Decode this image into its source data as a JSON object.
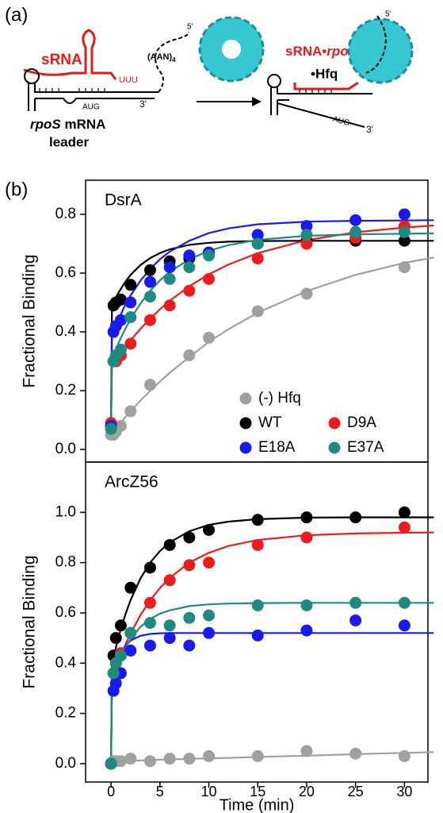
{
  "panel_labels": [
    "(a)",
    "(b)"
  ],
  "diagram": {
    "left": {
      "srna": "sRNA",
      "polyu": "UUU",
      "aan": "(AAN)",
      "aan_sub": "4",
      "five": "5'",
      "aug": "AUG",
      "three": "3'",
      "rpos": "rpoS",
      "mrna": "mRNA",
      "leader": "leader"
    },
    "right": {
      "srna": "sRNA•",
      "rpos": "rpoS",
      "hfq": "•Hfq",
      "five": "5'",
      "aug": "AUG",
      "three": "3'"
    }
  },
  "chart_data": [
    {
      "type": "scatter",
      "title": "DsrA",
      "ylabel": "Fractional Binding",
      "x": [
        0,
        0.25,
        0.5,
        1,
        2,
        4,
        6,
        8,
        10,
        15,
        20,
        25,
        30
      ],
      "fit_x": [
        0,
        0.1,
        0.3,
        0.6,
        1,
        1.5,
        2,
        3,
        4,
        5,
        6,
        8,
        10,
        12,
        15,
        20,
        25,
        30,
        33
      ],
      "xlim": [
        -2.6,
        32.4
      ],
      "ylim": [
        -0.043,
        0.916
      ],
      "yticks": [
        {
          "value": 0,
          "label": "0.0"
        },
        0.2,
        0.4,
        0.6,
        0.8
      ],
      "legend": "lower right",
      "series": [
        {
          "name": "(-) Hfq",
          "color": "#a0a0a0",
          "values": [
            0.05,
            0.05,
            0.06,
            0.08,
            0.13,
            0.22,
            null,
            0.32,
            0.38,
            0.47,
            0.53,
            null,
            0.62
          ],
          "fit": [
            0.05,
            0.054,
            0.063,
            0.075,
            0.091,
            0.111,
            0.129,
            0.166,
            0.199,
            0.231,
            0.261,
            0.314,
            0.366,
            0.409,
            0.465,
            0.539,
            0.594,
            0.635,
            0.653
          ]
        },
        {
          "name": "WT",
          "color": "#000000",
          "values": [
            0.08,
            0.49,
            0.5,
            0.51,
            0.56,
            0.61,
            0.64,
            0.65,
            0.67,
            0.7,
            0.71,
            0.71,
            0.71
          ],
          "fit": [
            0.08,
            0.488,
            0.503,
            0.524,
            0.546,
            0.572,
            0.594,
            0.627,
            0.651,
            0.668,
            0.681,
            0.696,
            0.703,
            0.707,
            0.709,
            0.71,
            0.71,
            0.71,
            0.71
          ]
        },
        {
          "name": "D9A",
          "color": "#ee1c1c",
          "values": [
            0.09,
            0.3,
            0.3,
            0.32,
            0.36,
            0.44,
            0.49,
            0.54,
            0.58,
            0.65,
            0.7,
            0.72,
            0.76
          ],
          "fit": [
            0.09,
            0.285,
            0.295,
            0.309,
            0.328,
            0.35,
            0.371,
            0.41,
            0.445,
            0.477,
            0.506,
            0.555,
            0.596,
            0.629,
            0.668,
            0.712,
            0.739,
            0.755,
            0.762
          ]
        },
        {
          "name": "E18A",
          "color": "#1a1aee",
          "values": [
            0.08,
            0.4,
            0.42,
            0.44,
            0.5,
            0.57,
            0.62,
            0.66,
            0.67,
            0.73,
            0.76,
            0.78,
            0.8
          ],
          "fit": [
            0.08,
            0.389,
            0.405,
            0.43,
            0.459,
            0.495,
            0.524,
            0.574,
            0.614,
            0.647,
            0.673,
            0.71,
            0.736,
            0.752,
            0.766,
            0.775,
            0.778,
            0.779,
            0.78
          ]
        },
        {
          "name": "E37A",
          "color": "#1f8a80",
          "values": [
            0.07,
            0.3,
            0.32,
            0.34,
            0.45,
            0.52,
            0.58,
            0.62,
            0.66,
            0.7,
            0.73,
            0.74,
            0.74
          ],
          "fit": [
            0.07,
            0.309,
            0.325,
            0.349,
            0.379,
            0.413,
            0.444,
            0.496,
            0.54,
            0.575,
            0.604,
            0.647,
            0.676,
            0.695,
            0.713,
            0.727,
            0.732,
            0.734,
            0.735
          ]
        }
      ]
    },
    {
      "type": "scatter",
      "title": "ArcZ56",
      "ylabel": "Fractional Binding",
      "xlabel": "Time (min)",
      "x": [
        0,
        0.25,
        0.5,
        1,
        2,
        4,
        6,
        8,
        10,
        15,
        20,
        25,
        30
      ],
      "fit_x": [
        0,
        0.1,
        0.3,
        0.6,
        1,
        1.5,
        2,
        3,
        4,
        5,
        6,
        8,
        10,
        12,
        15,
        20,
        25,
        30,
        33
      ],
      "xlim": [
        -2.6,
        32.4
      ],
      "ylim": [
        -0.073,
        1.2
      ],
      "xticks": [
        0,
        5,
        10,
        15,
        20,
        25,
        30
      ],
      "yticks": [
        {
          "value": 0,
          "label": "0.0"
        },
        0.2,
        0.4,
        0.6,
        0.8,
        {
          "value": 1,
          "label": "1.0"
        }
      ],
      "series": [
        {
          "color": "#a0a0a0",
          "values": [
            0,
            0.01,
            0.01,
            0.01,
            0.02,
            0.01,
            0.02,
            0.02,
            0.03,
            0.03,
            0.05,
            0.04,
            0.03
          ],
          "fit": [
            0,
            0.01,
            0.01,
            0.011,
            0.011,
            0.012,
            0.012,
            0.013,
            0.014,
            0.016,
            0.017,
            0.019,
            0.021,
            0.023,
            0.027,
            0.032,
            0.038,
            0.043,
            0.046
          ]
        },
        {
          "color": "#000000",
          "values": [
            0,
            0.43,
            0.5,
            0.55,
            0.7,
            0.78,
            0.87,
            0.9,
            0.93,
            0.97,
            0.98,
            0.98,
            1.0
          ],
          "fit": [
            0,
            0.398,
            0.432,
            0.478,
            0.536,
            0.597,
            0.651,
            0.736,
            0.8,
            0.846,
            0.88,
            0.925,
            0.95,
            0.963,
            0.973,
            0.979,
            0.98,
            0.98,
            0.98
          ]
        },
        {
          "color": "#ee1c1c",
          "values": [
            0,
            0.36,
            0.4,
            0.44,
            0.52,
            0.64,
            0.73,
            0.79,
            0.8,
            0.87,
            0.9,
            null,
            0.94
          ],
          "fit": [
            0,
            0.332,
            0.355,
            0.387,
            0.429,
            0.476,
            0.518,
            0.591,
            0.65,
            0.699,
            0.739,
            0.8,
            0.839,
            0.866,
            0.89,
            0.909,
            0.916,
            0.919,
            0.92
          ]
        },
        {
          "color": "#1a1aee",
          "values": [
            0,
            0.29,
            0.32,
            0.36,
            0.45,
            0.47,
            0.5,
            0.47,
            0.52,
            0.51,
            0.53,
            0.57,
            0.55
          ],
          "fit": [
            0,
            0.321,
            0.357,
            0.399,
            0.439,
            0.471,
            0.49,
            0.509,
            0.516,
            0.519,
            0.52,
            0.52,
            0.52,
            0.52,
            0.52,
            0.52,
            0.52,
            0.52,
            0.52
          ]
        },
        {
          "color": "#1f8a80",
          "values": [
            0,
            0.36,
            0.4,
            0.43,
            0.52,
            0.56,
            0.55,
            0.58,
            0.59,
            0.63,
            0.63,
            0.64,
            0.64
          ],
          "fit": [
            0,
            0.333,
            0.357,
            0.388,
            0.425,
            0.464,
            0.496,
            0.544,
            0.576,
            0.597,
            0.61,
            0.627,
            0.634,
            0.637,
            0.639,
            0.64,
            0.64,
            0.64,
            0.64
          ]
        }
      ]
    }
  ]
}
